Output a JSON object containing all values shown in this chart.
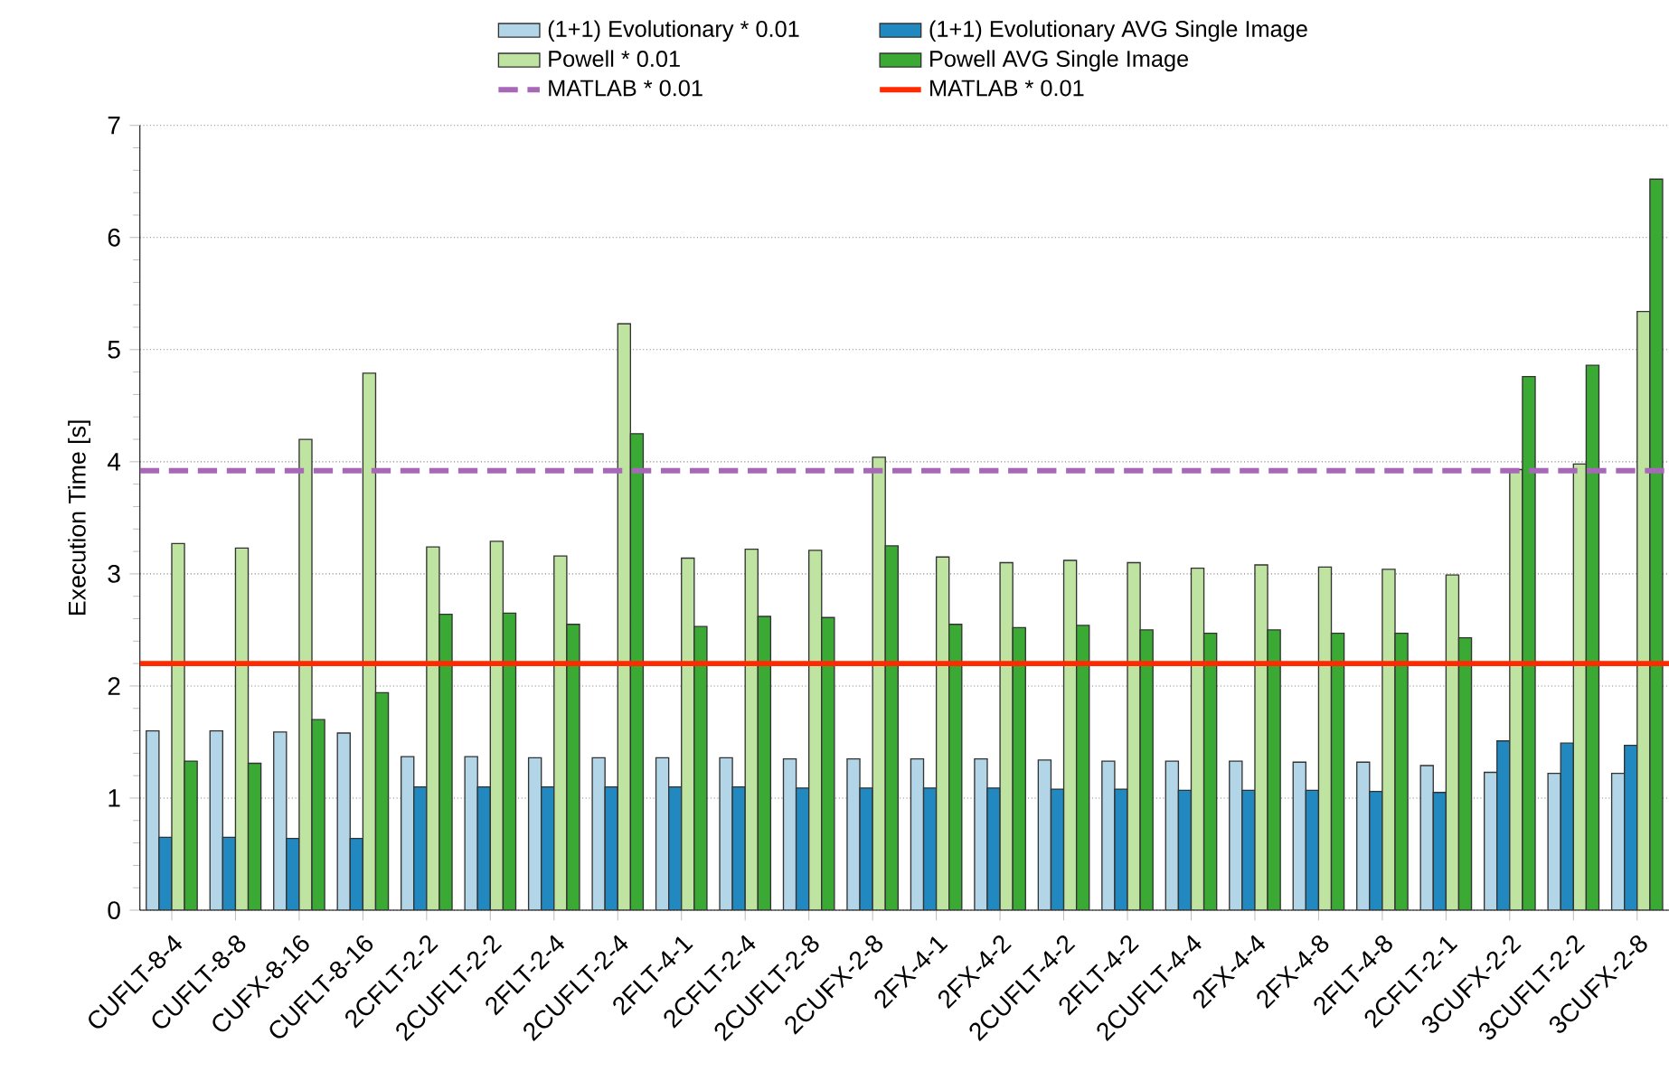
{
  "chart_data": {
    "type": "bar",
    "ylabel": "Execution Time [s]",
    "categories": [
      "CUFLT-8-4",
      "CUFLT-8-8",
      "CUFX-8-16",
      "CUFLT-8-16",
      "2CFLT-2-2",
      "2CUFLT-2-2",
      "2FLT-2-4",
      "2CUFLT-2-4",
      "2FLT-4-1",
      "2CFLT-2-4",
      "2CUFLT-2-8",
      "2CUFX-2-8",
      "2FX-4-1",
      "2FX-4-2",
      "2CUFLT-4-2",
      "2FLT-4-2",
      "2CUFLT-4-4",
      "2FX-4-4",
      "2FX-4-8",
      "2FLT-4-8",
      "2CFLT-2-1",
      "3CUFX-2-2",
      "3CUFLT-2-2",
      "3CUFX-2-8"
    ],
    "series": [
      {
        "name": "(1+1) Evolutionary * 0.01",
        "color": "#b3d5e8",
        "values": [
          1.6,
          1.6,
          1.59,
          1.58,
          1.37,
          1.37,
          1.36,
          1.36,
          1.36,
          1.36,
          1.35,
          1.35,
          1.35,
          1.35,
          1.34,
          1.33,
          1.33,
          1.33,
          1.32,
          1.32,
          1.29,
          1.23,
          1.22,
          1.22
        ]
      },
      {
        "name": "(1+1) Evolutionary AVG Single Image",
        "color": "#2188c0",
        "values": [
          0.65,
          0.65,
          0.64,
          0.64,
          1.1,
          1.1,
          1.1,
          1.1,
          1.1,
          1.1,
          1.09,
          1.09,
          1.09,
          1.09,
          1.08,
          1.08,
          1.07,
          1.07,
          1.07,
          1.06,
          1.05,
          1.51,
          1.49,
          1.47
        ]
      },
      {
        "name": "Powell * 0.01",
        "color": "#bfe3a0",
        "values": [
          3.27,
          3.23,
          4.2,
          4.79,
          3.24,
          3.29,
          3.16,
          5.23,
          3.14,
          3.22,
          3.21,
          4.04,
          3.15,
          3.1,
          3.12,
          3.1,
          3.05,
          3.08,
          3.06,
          3.04,
          2.99,
          3.93,
          3.98,
          5.34
        ]
      },
      {
        "name": "Powell AVG Single Image",
        "color": "#3aaa35",
        "values": [
          1.33,
          1.31,
          1.7,
          1.94,
          2.64,
          2.65,
          2.55,
          4.25,
          2.53,
          2.62,
          2.61,
          3.25,
          2.55,
          2.52,
          2.54,
          2.5,
          2.47,
          2.5,
          2.47,
          2.47,
          2.43,
          4.76,
          4.86,
          6.52
        ]
      }
    ],
    "ref_lines": [
      {
        "axis": "y",
        "value": 3.92,
        "label": "MATLAB * 0.01",
        "color": "#a868b8",
        "line_style": "dashed"
      },
      {
        "axis": "y",
        "value": 2.2,
        "label": "MATLAB * 0.01",
        "color": "#ff2a00",
        "line_style": "solid"
      }
    ],
    "ylim": [
      0,
      7
    ],
    "yticks": [
      0,
      1,
      2,
      3,
      4,
      5,
      6,
      7
    ],
    "grid": "y",
    "legend": "top"
  }
}
